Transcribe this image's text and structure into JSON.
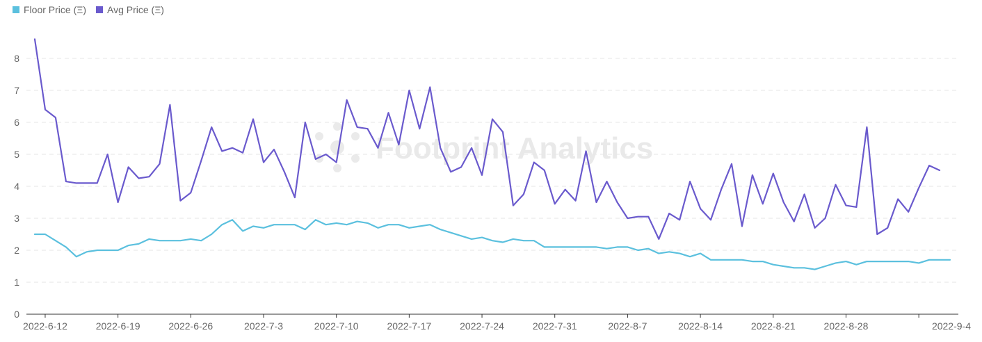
{
  "watermark": "Footprint Analytics",
  "chart_data": {
    "type": "line",
    "y_ticks": [
      0,
      1,
      2,
      3,
      4,
      5,
      6,
      7,
      8
    ],
    "ylim": [
      0,
      9
    ],
    "x_tick_labels": [
      "2022-6-12",
      "2022-6-19",
      "2022-6-26",
      "2022-7-3",
      "2022-7-10",
      "2022-7-17",
      "2022-7-24",
      "2022-7-31",
      "2022-8-7",
      "2022-8-14",
      "2022-8-21",
      "2022-8-28",
      "2022-9-4"
    ],
    "start_date": "2022-06-11",
    "grid": true,
    "legend": "top-left",
    "series": [
      {
        "name": "Floor Price (Ξ)",
        "color": "#5bc0de",
        "values": [
          2.5,
          2.5,
          2.3,
          2.1,
          1.8,
          1.95,
          2.0,
          2.0,
          2.0,
          2.15,
          2.2,
          2.35,
          2.3,
          2.3,
          2.3,
          2.35,
          2.3,
          2.5,
          2.8,
          2.95,
          2.6,
          2.75,
          2.7,
          2.8,
          2.8,
          2.8,
          2.65,
          2.95,
          2.8,
          2.85,
          2.8,
          2.9,
          2.85,
          2.7,
          2.8,
          2.8,
          2.7,
          2.75,
          2.8,
          2.65,
          2.55,
          2.45,
          2.35,
          2.4,
          2.3,
          2.25,
          2.35,
          2.3,
          2.3,
          2.1,
          2.1,
          2.1,
          2.1,
          2.1,
          2.1,
          2.05,
          2.1,
          2.1,
          2.0,
          2.05,
          1.9,
          1.95,
          1.9,
          1.8,
          1.9,
          1.7,
          1.7,
          1.7,
          1.7,
          1.65,
          1.65,
          1.55,
          1.5,
          1.45,
          1.45,
          1.4,
          1.5,
          1.6,
          1.65,
          1.55,
          1.65,
          1.65,
          1.65,
          1.65,
          1.65,
          1.6,
          1.7,
          1.7,
          1.7
        ]
      },
      {
        "name": "Avg Price (Ξ)",
        "color": "#6a5acd",
        "values": [
          8.6,
          6.4,
          6.15,
          4.15,
          4.1,
          4.1,
          4.1,
          5.0,
          3.5,
          4.6,
          4.25,
          4.3,
          4.7,
          6.55,
          3.55,
          3.8,
          4.8,
          5.85,
          5.1,
          5.2,
          5.05,
          6.1,
          4.75,
          5.15,
          4.45,
          3.65,
          6.0,
          4.85,
          5.0,
          4.75,
          6.7,
          5.85,
          5.8,
          5.2,
          6.3,
          5.3,
          7.0,
          5.8,
          7.1,
          5.2,
          4.45,
          4.6,
          5.2,
          4.35,
          6.1,
          5.7,
          3.4,
          3.75,
          4.75,
          4.5,
          3.45,
          3.9,
          3.55,
          5.1,
          3.5,
          4.15,
          3.5,
          3.0,
          3.05,
          3.05,
          2.35,
          3.15,
          2.95,
          4.15,
          3.3,
          2.95,
          3.9,
          4.7,
          2.75,
          4.35,
          3.45,
          4.4,
          3.5,
          2.9,
          3.75,
          2.7,
          3.0,
          4.05,
          3.4,
          3.35,
          5.85,
          2.5,
          2.7,
          3.6,
          3.2,
          3.95,
          4.65,
          4.5
        ]
      }
    ]
  }
}
